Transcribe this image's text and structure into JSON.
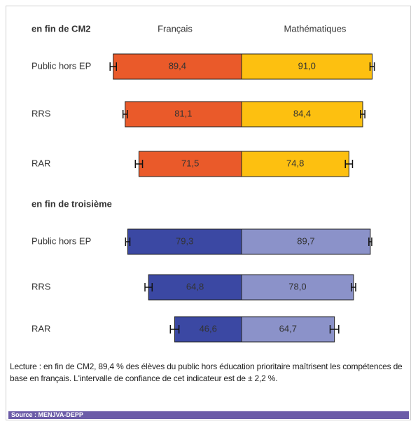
{
  "chart_data": {
    "type": "diverging-bar",
    "series_names": [
      "Français",
      "Mathématiques"
    ],
    "panels": [
      {
        "title": "en fin de CM2",
        "categories": [
          "Public hors EP",
          "RRS",
          "RAR"
        ],
        "series": [
          {
            "color": "#ea5a2a",
            "label_color": "#8a3a14",
            "values": [
              89.4,
              81.1,
              71.5
            ],
            "value_labels": [
              "89,4",
              "81,1",
              "71,5"
            ],
            "errors": [
              2.2,
              1.5,
              2.5
            ]
          },
          {
            "color": "#fdc010",
            "label_color": "#8a5a10",
            "values": [
              91.0,
              84.4,
              74.8
            ],
            "value_labels": [
              "91,0",
              "84,4",
              "74,8"
            ],
            "errors": [
              1.5,
              1.5,
              2.5
            ]
          }
        ]
      },
      {
        "title": "en fin de troisième",
        "categories": [
          "Public hors EP",
          "RRS",
          "RAR"
        ],
        "series": [
          {
            "color": "#3b48a3",
            "label_color": "#ffffff",
            "values": [
              79.3,
              64.8,
              46.6
            ],
            "value_labels": [
              "79,3",
              "64,8",
              "46,6"
            ],
            "errors": [
              1.5,
              2.5,
              3.0
            ]
          },
          {
            "color": "#8b92c9",
            "label_color": "#3a3f70",
            "values": [
              89.7,
              78.0,
              64.7
            ],
            "value_labels": [
              "89,7",
              "78,0",
              "64,7"
            ],
            "errors": [
              1.0,
              1.5,
              3.0
            ]
          }
        ]
      }
    ]
  },
  "note": "Lecture : en fin de CM2, 89,4 % des élèves du public hors éducation prioritaire maîtrisent les compétences de base en français. L'intervalle de confiance de cet indicateur est de ± 2,2 %.",
  "source": "Source : MENJVA-DEPP"
}
